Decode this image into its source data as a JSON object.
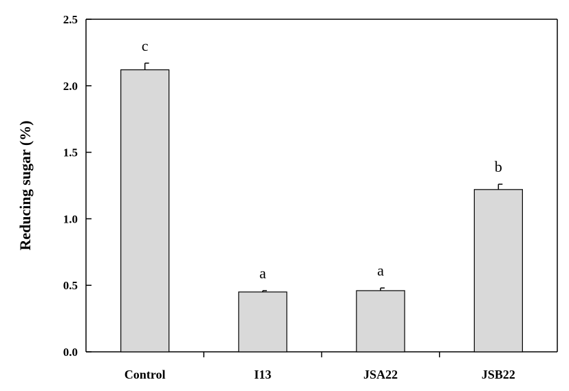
{
  "chart_data": {
    "type": "bar",
    "categories": [
      "Control",
      "I13",
      "JSA22",
      "JSB22"
    ],
    "values": [
      2.12,
      0.45,
      0.46,
      1.22
    ],
    "errors": [
      0.05,
      0.01,
      0.02,
      0.04
    ],
    "significance": [
      "c",
      "a",
      "a",
      "b"
    ],
    "title": "",
    "xlabel": "",
    "ylabel": "Reducing sugar (%)",
    "ylim": [
      0,
      2.5
    ],
    "yticks": [
      0.0,
      0.5,
      1.0,
      1.5,
      2.0,
      2.5
    ],
    "ytick_labels": [
      "0.0",
      "0.5",
      "1.0",
      "1.5",
      "2.0",
      "2.5"
    ],
    "grid": false,
    "legend": "none",
    "colors": {
      "bar_fill": "#d9d9d9",
      "bar_stroke": "#000000",
      "axis": "#000000"
    }
  }
}
